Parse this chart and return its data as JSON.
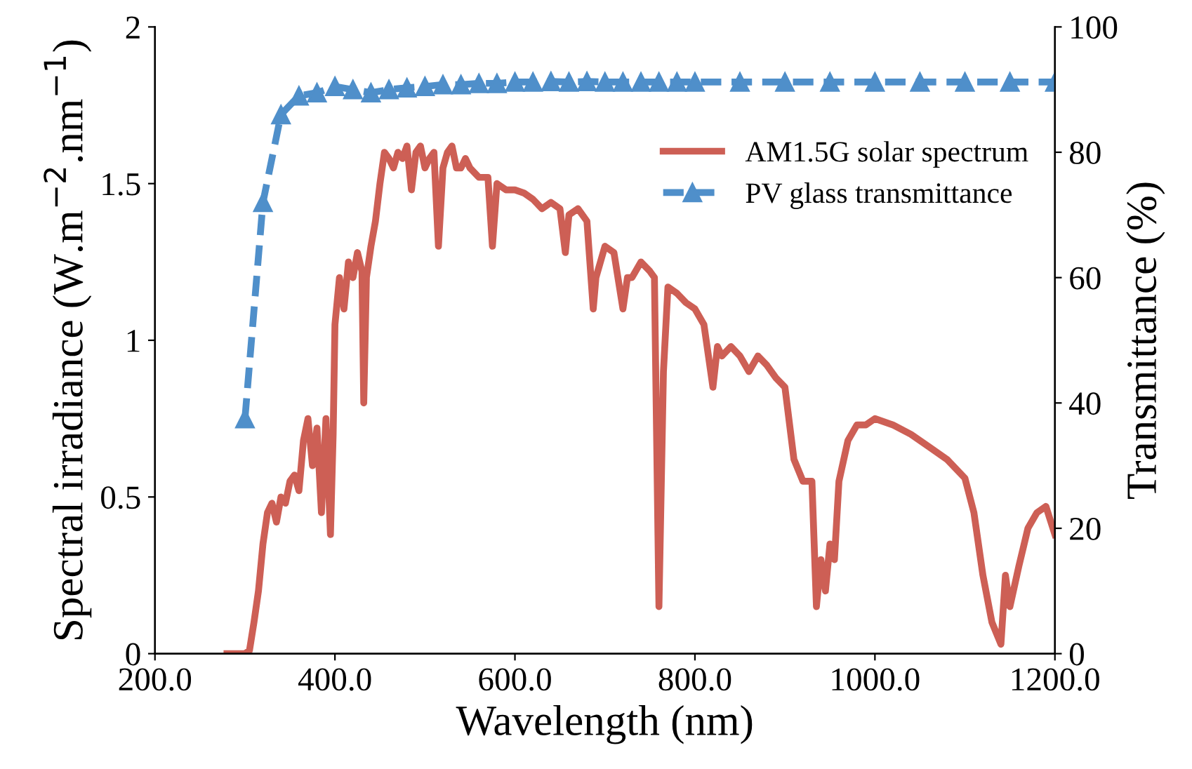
{
  "chart_data": {
    "type": "line",
    "xlabel": "Wavelength (nm)",
    "ylabel": "Spectral irradiance (W.m$^{−2}$.nm$^{−1}$)",
    "y2label": "Transmittance (%)",
    "xlim": [
      200,
      1200
    ],
    "xticks": [
      {
        "value": 200,
        "label": "200.0"
      },
      {
        "value": 400,
        "label": "400.0"
      },
      {
        "value": 600,
        "label": "600.0"
      },
      {
        "value": 800,
        "label": "800.0"
      },
      {
        "value": 1000,
        "label": "1000.0"
      },
      {
        "value": 1200,
        "label": "1200.0"
      }
    ],
    "ylim": [
      0,
      2
    ],
    "yticks": [
      0,
      0.5,
      1,
      1.5,
      2
    ],
    "y2lim": [
      0,
      100
    ],
    "y2ticks": [
      0,
      20,
      40,
      60,
      80,
      100
    ],
    "grid": false,
    "legend": "top right",
    "series": [
      {
        "name": "AM1.5G solar spectrum",
        "color": "#cd5f55",
        "marker": "none",
        "line_style": "solid",
        "x": [
          280,
          300,
          305,
          310,
          315,
          320,
          325,
          330,
          335,
          340,
          345,
          350,
          355,
          360,
          365,
          370,
          375,
          380,
          385,
          390,
          395,
          398,
          400,
          405,
          410,
          415,
          420,
          425,
          430,
          432,
          435,
          440,
          445,
          450,
          455,
          460,
          465,
          470,
          475,
          480,
          485,
          490,
          495,
          500,
          505,
          510,
          515,
          520,
          525,
          530,
          535,
          540,
          545,
          550,
          560,
          570,
          575,
          580,
          590,
          600,
          610,
          620,
          630,
          640,
          650,
          656,
          660,
          670,
          680,
          687,
          690,
          700,
          710,
          720,
          725,
          730,
          740,
          750,
          755,
          760,
          765,
          770,
          780,
          790,
          800,
          810,
          815,
          820,
          825,
          830,
          840,
          850,
          860,
          870,
          880,
          890,
          900,
          910,
          920,
          930,
          935,
          940,
          945,
          950,
          955,
          960,
          970,
          980,
          990,
          1000,
          1020,
          1040,
          1060,
          1080,
          1100,
          1110,
          1120,
          1130,
          1140,
          1145,
          1150,
          1160,
          1170,
          1180,
          1190,
          1200
        ],
        "values": [
          0,
          0,
          0.01,
          0.1,
          0.2,
          0.35,
          0.45,
          0.48,
          0.42,
          0.5,
          0.48,
          0.55,
          0.57,
          0.52,
          0.68,
          0.75,
          0.6,
          0.72,
          0.45,
          0.75,
          0.38,
          0.7,
          1.05,
          1.2,
          1.1,
          1.25,
          1.2,
          1.28,
          1.22,
          0.8,
          1.2,
          1.3,
          1.38,
          1.5,
          1.6,
          1.58,
          1.55,
          1.6,
          1.58,
          1.62,
          1.48,
          1.6,
          1.62,
          1.55,
          1.58,
          1.6,
          1.3,
          1.55,
          1.6,
          1.62,
          1.55,
          1.55,
          1.58,
          1.55,
          1.52,
          1.52,
          1.3,
          1.5,
          1.48,
          1.48,
          1.47,
          1.45,
          1.42,
          1.44,
          1.42,
          1.28,
          1.4,
          1.42,
          1.38,
          1.1,
          1.2,
          1.3,
          1.28,
          1.1,
          1.2,
          1.2,
          1.25,
          1.22,
          1.2,
          0.15,
          0.9,
          1.17,
          1.15,
          1.12,
          1.1,
          1.05,
          0.95,
          0.85,
          0.98,
          0.95,
          0.98,
          0.95,
          0.9,
          0.95,
          0.92,
          0.88,
          0.85,
          0.62,
          0.55,
          0.55,
          0.15,
          0.3,
          0.2,
          0.35,
          0.3,
          0.55,
          0.68,
          0.73,
          0.73,
          0.75,
          0.73,
          0.7,
          0.66,
          0.62,
          0.56,
          0.45,
          0.25,
          0.1,
          0.03,
          0.25,
          0.15,
          0.28,
          0.4,
          0.45,
          0.47,
          0.38
        ]
      },
      {
        "name": "PV glass transmittance",
        "color": "#4f8fca",
        "marker": "triangle",
        "line_style": "dashed",
        "axis": "y2",
        "x": [
          300,
          320,
          340,
          360,
          380,
          400,
          420,
          440,
          460,
          480,
          500,
          520,
          540,
          560,
          580,
          600,
          620,
          640,
          660,
          680,
          700,
          720,
          740,
          760,
          780,
          800,
          850,
          900,
          950,
          1000,
          1050,
          1100,
          1150,
          1200
        ],
        "values": [
          37.5,
          72,
          86,
          89,
          89.5,
          90.5,
          90,
          89.5,
          90,
          90.3,
          90.5,
          90.8,
          90.8,
          91,
          91,
          91.2,
          91.2,
          91.3,
          91.2,
          91.3,
          91.2,
          91.2,
          91.2,
          91.2,
          91.2,
          91.2,
          91.2,
          91.2,
          91.2,
          91.2,
          91.2,
          91.2,
          91.2,
          91.2
        ]
      }
    ]
  }
}
